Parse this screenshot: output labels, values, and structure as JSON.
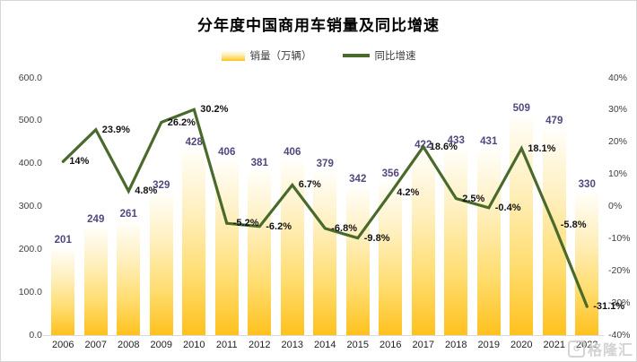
{
  "card": {
    "title": "分年度中国商用车销量及同比增速",
    "watermark": "格隆汇",
    "watermark_logo": "G"
  },
  "legend": {
    "sales_label": "销量（万辆）",
    "growth_label": "同比增速"
  },
  "chart_data": {
    "type": "combo-bar-line",
    "title": "分年度中国商用车销量及同比增速",
    "categories": [
      "2006",
      "2007",
      "2008",
      "2009",
      "2010",
      "2011",
      "2012",
      "2013",
      "2014",
      "2015",
      "2016",
      "2017",
      "2018",
      "2019",
      "2020",
      "2021",
      "2022"
    ],
    "series": [
      {
        "name": "销量（万辆）",
        "type": "bar",
        "axis": "left",
        "values": [
          201,
          249,
          261,
          329,
          428,
          406,
          381,
          406,
          379,
          342,
          356,
          422,
          433,
          431,
          509,
          479,
          330
        ]
      },
      {
        "name": "同比增速",
        "type": "line",
        "axis": "right",
        "values": [
          14,
          23.9,
          4.8,
          26.2,
          30.2,
          -5.2,
          -6.2,
          6.7,
          -6.8,
          -9.8,
          4.2,
          18.6,
          2.5,
          -0.4,
          18.1,
          -5.8,
          -31.1
        ],
        "labels": [
          "14%",
          "23.9%",
          "4.8%",
          "26.2%",
          "30.2%",
          "-5.2%",
          "-6.2%",
          "6.7%",
          "-6.8%",
          "-9.8%",
          "4.2%",
          "18.6%",
          "2.5%",
          "-0.4%",
          "18.1%",
          "-5.8%",
          "-31.1%"
        ]
      }
    ],
    "left_axis": {
      "min": 0,
      "max": 600,
      "ticks": [
        "600.0",
        "500.0",
        "400.0",
        "300.0",
        "200.0",
        "100.0",
        "0.0"
      ]
    },
    "right_axis": {
      "min": -40,
      "max": 40,
      "ticks": [
        "40%",
        "30%",
        "20%",
        "10%",
        "0%",
        "-10%",
        "-20%",
        "-30%",
        "-40%"
      ]
    },
    "grid": "off",
    "legend_position": "top",
    "colors": {
      "bar_top": "#fffef8",
      "bar_mid1": "#fff0c0",
      "bar_mid2": "#ffdd70",
      "bar_bottom": "#ffc11e",
      "line": "#4a6a2c",
      "bar_label": "#52477e",
      "growth_label": "#111111",
      "axis_text": "#404040"
    }
  }
}
